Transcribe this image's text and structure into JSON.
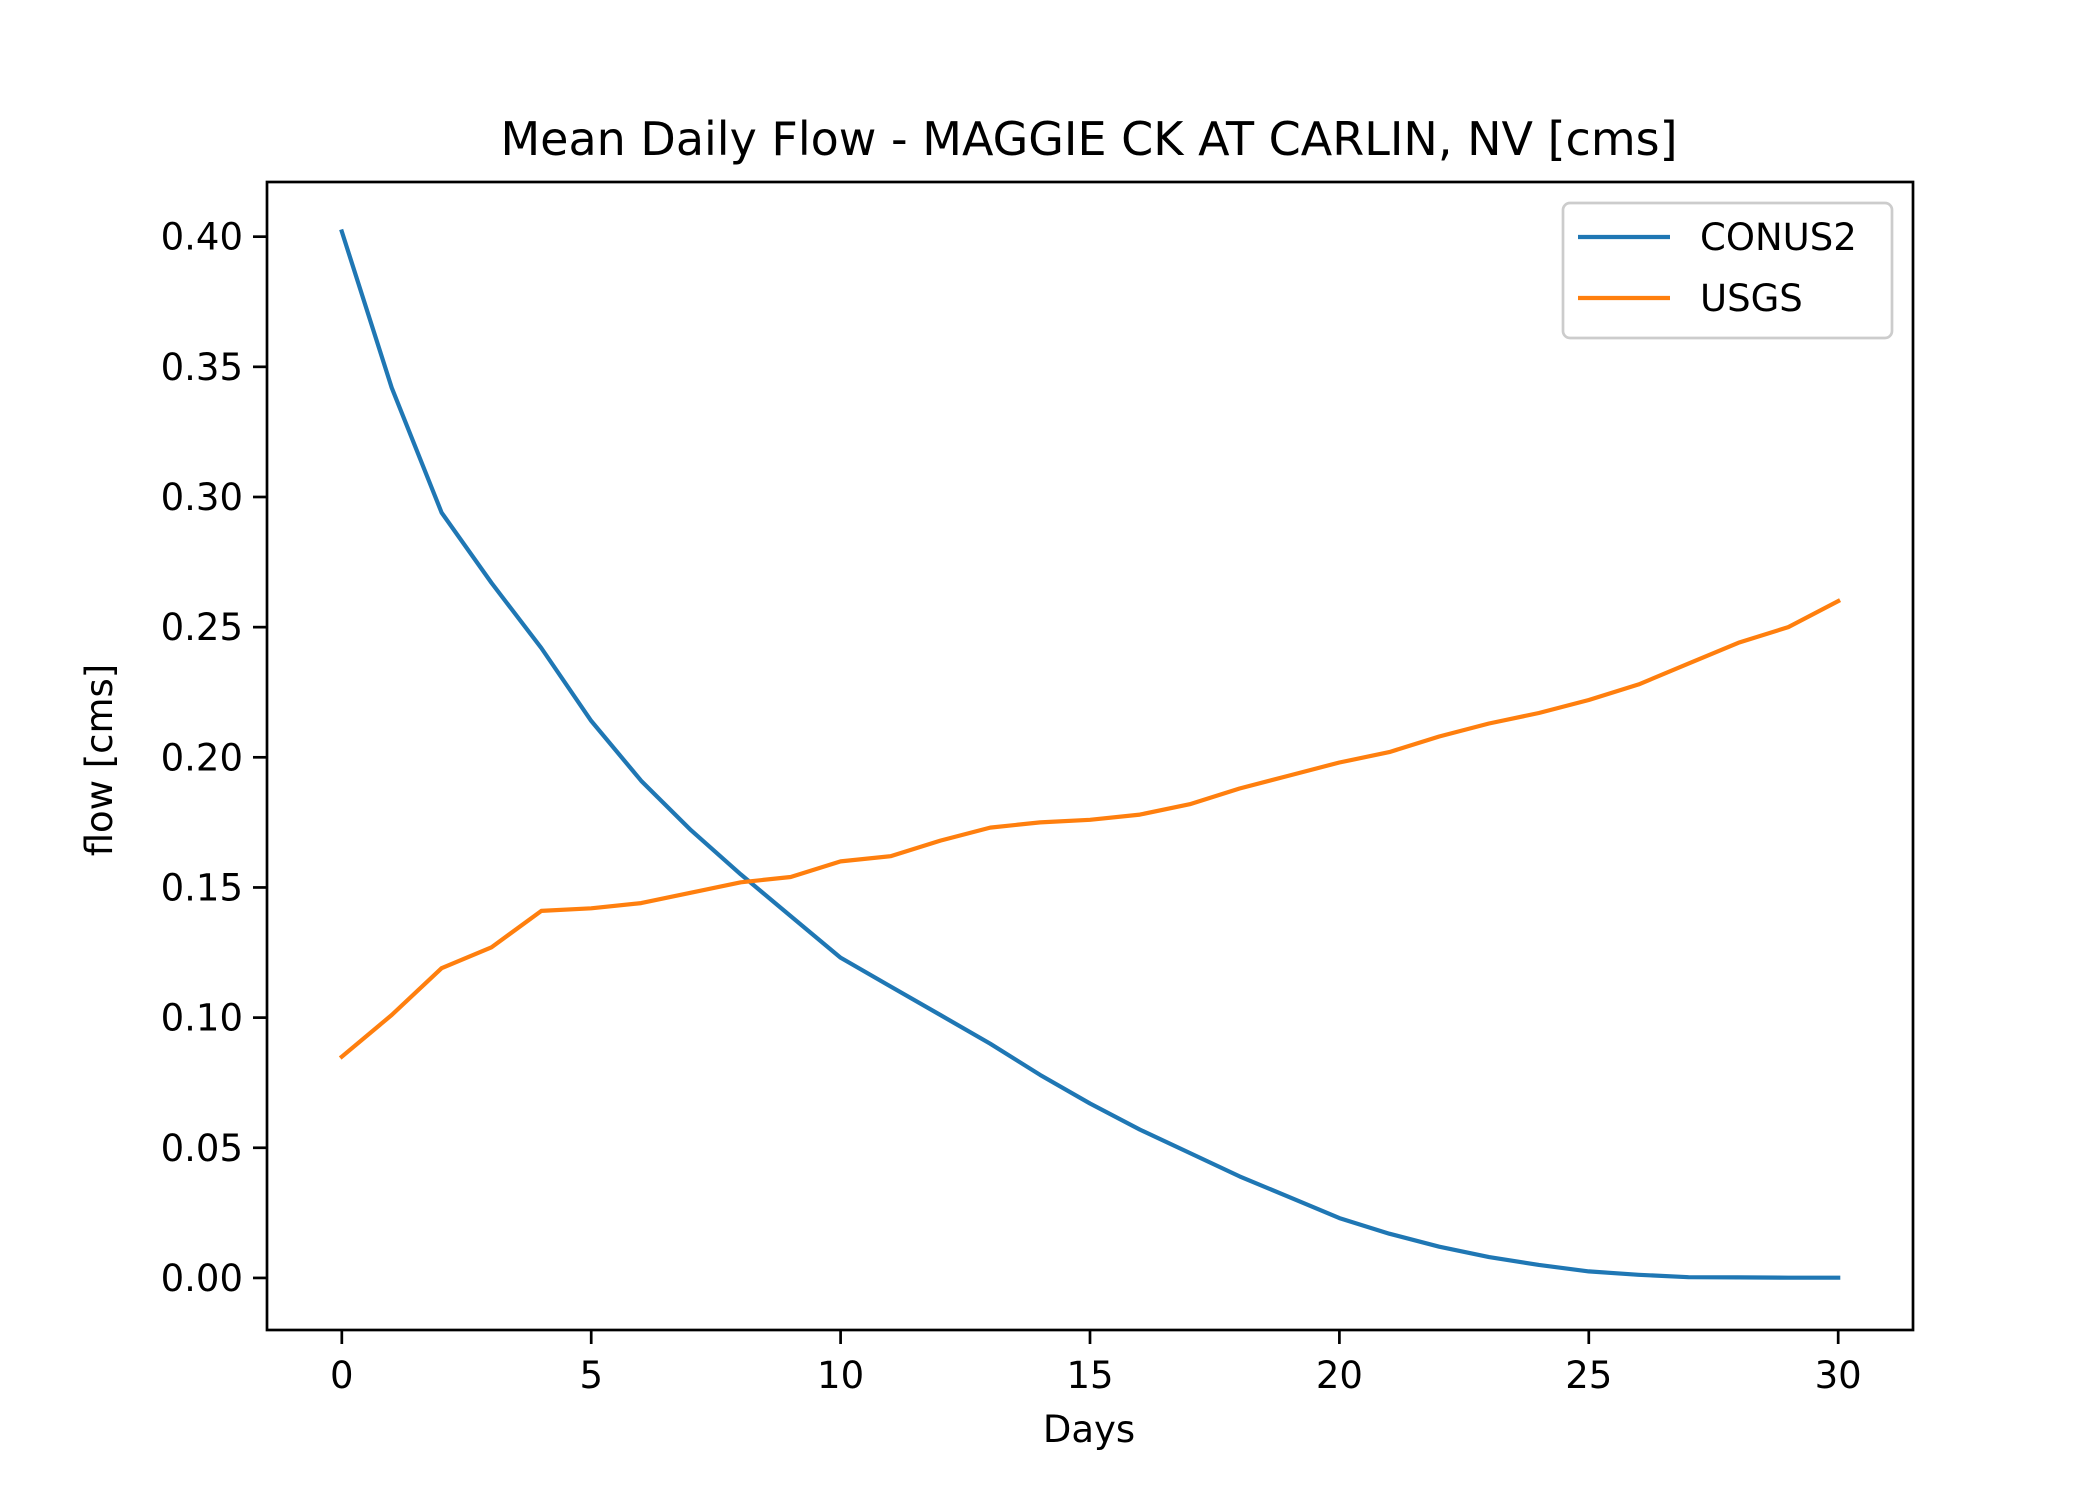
{
  "chart_data": {
    "type": "line",
    "title": "Mean Daily Flow - MAGGIE CK AT CARLIN, NV [cms]",
    "xlabel": "Days",
    "ylabel": "flow [cms]",
    "xlim": [
      -1.5,
      31.5
    ],
    "ylim": [
      -0.02,
      0.421
    ],
    "xticks": [
      0,
      5,
      10,
      15,
      20,
      25,
      30
    ],
    "xtick_labels": [
      "0",
      "5",
      "10",
      "15",
      "20",
      "25",
      "30"
    ],
    "yticks": [
      0.0,
      0.05,
      0.1,
      0.15,
      0.2,
      0.25,
      0.3,
      0.35,
      0.4
    ],
    "ytick_labels": [
      "0.00",
      "0.05",
      "0.10",
      "0.15",
      "0.20",
      "0.25",
      "0.30",
      "0.35",
      "0.40"
    ],
    "grid": false,
    "legend_position": "top-right",
    "x": [
      0,
      1,
      2,
      3,
      4,
      5,
      6,
      7,
      8,
      9,
      10,
      11,
      12,
      13,
      14,
      15,
      16,
      17,
      18,
      19,
      20,
      21,
      22,
      23,
      24,
      25,
      26,
      27,
      28,
      29,
      30
    ],
    "series": [
      {
        "name": "CONUS2",
        "color": "#1f77b4",
        "values": [
          0.402,
          0.342,
          0.294,
          0.267,
          0.242,
          0.214,
          0.191,
          0.172,
          0.155,
          0.139,
          0.123,
          0.112,
          0.101,
          0.09,
          0.078,
          0.067,
          0.057,
          0.048,
          0.039,
          0.031,
          0.023,
          0.017,
          0.012,
          0.008,
          0.005,
          0.0025,
          0.0012,
          0.0003,
          0.0002,
          0.0001,
          0.0001
        ]
      },
      {
        "name": "USGS",
        "color": "#ff7f0e",
        "values": [
          0.085,
          0.101,
          0.119,
          0.127,
          0.141,
          0.142,
          0.144,
          0.148,
          0.152,
          0.154,
          0.16,
          0.162,
          0.168,
          0.173,
          0.175,
          0.176,
          0.178,
          0.182,
          0.188,
          0.193,
          0.198,
          0.202,
          0.208,
          0.213,
          0.217,
          0.222,
          0.228,
          0.236,
          0.244,
          0.25,
          0.26
        ]
      }
    ]
  }
}
